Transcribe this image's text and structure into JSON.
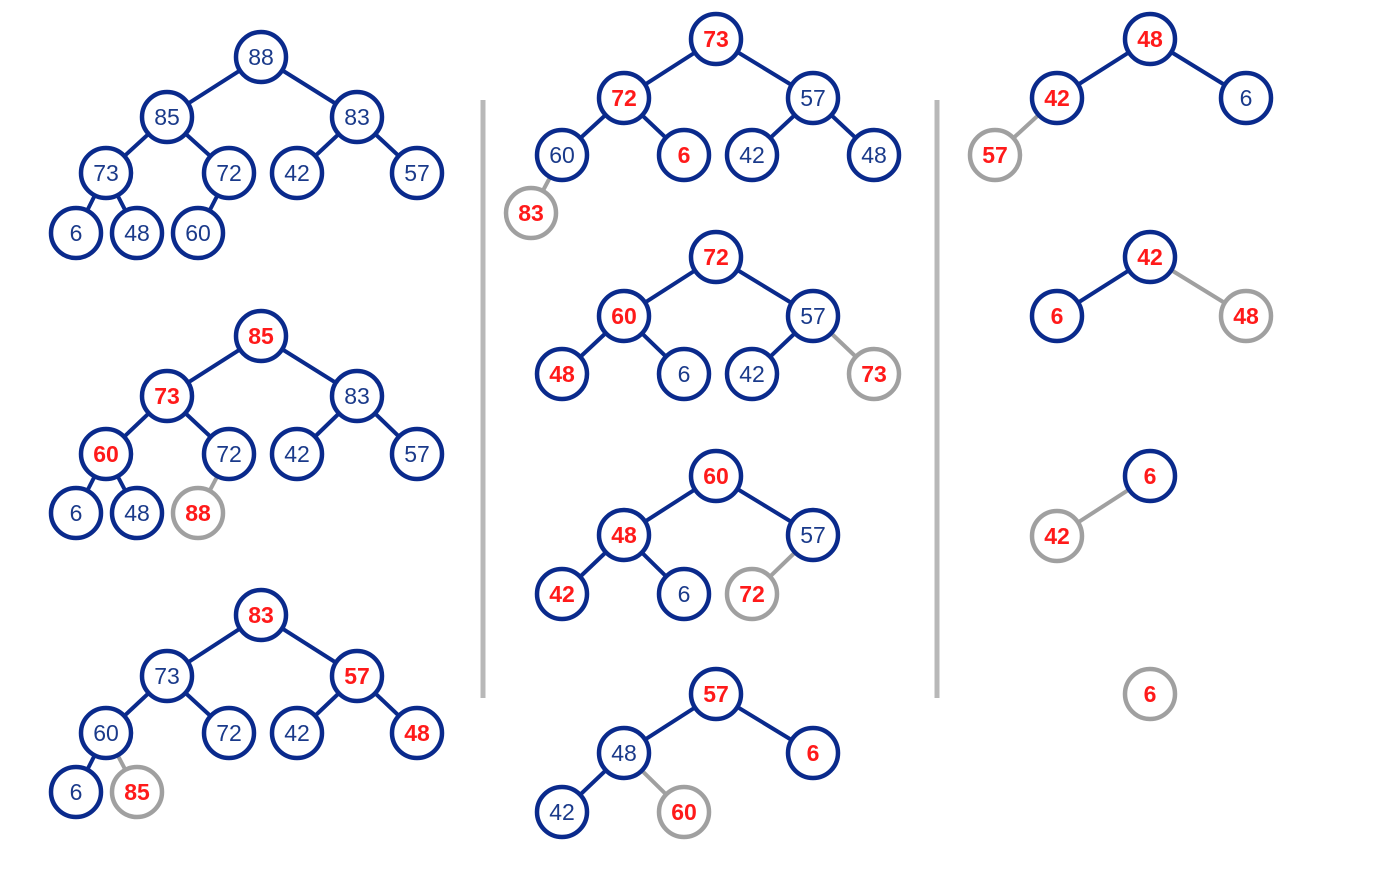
{
  "colors": {
    "node_stroke": "#0a2a8c",
    "extracted_stroke": "#a0a0a0",
    "text_blue": "#1a3a8a",
    "text_red": "#ff1a1a",
    "divider": "#b8b8b8"
  },
  "trees": [
    {
      "id": "heap-1",
      "nodes": [
        {
          "label": "88",
          "highlight": false,
          "extracted": false
        },
        {
          "label": "85",
          "highlight": false,
          "extracted": false
        },
        {
          "label": "83",
          "highlight": false,
          "extracted": false
        },
        {
          "label": "73",
          "highlight": false,
          "extracted": false
        },
        {
          "label": "72",
          "highlight": false,
          "extracted": false
        },
        {
          "label": "42",
          "highlight": false,
          "extracted": false
        },
        {
          "label": "57",
          "highlight": false,
          "extracted": false
        },
        {
          "label": "6",
          "highlight": false,
          "extracted": false
        },
        {
          "label": "48",
          "highlight": false,
          "extracted": false
        },
        {
          "label": "60",
          "highlight": false,
          "extracted": false
        }
      ]
    },
    {
      "id": "heap-2",
      "nodes": [
        {
          "label": "85",
          "highlight": true,
          "extracted": false
        },
        {
          "label": "73",
          "highlight": true,
          "extracted": false
        },
        {
          "label": "83",
          "highlight": false,
          "extracted": false
        },
        {
          "label": "60",
          "highlight": true,
          "extracted": false
        },
        {
          "label": "72",
          "highlight": false,
          "extracted": false
        },
        {
          "label": "42",
          "highlight": false,
          "extracted": false
        },
        {
          "label": "57",
          "highlight": false,
          "extracted": false
        },
        {
          "label": "6",
          "highlight": false,
          "extracted": false
        },
        {
          "label": "48",
          "highlight": false,
          "extracted": false
        },
        {
          "label": "88",
          "highlight": true,
          "extracted": true
        }
      ]
    },
    {
      "id": "heap-3",
      "nodes": [
        {
          "label": "83",
          "highlight": true,
          "extracted": false
        },
        {
          "label": "73",
          "highlight": false,
          "extracted": false
        },
        {
          "label": "57",
          "highlight": true,
          "extracted": false
        },
        {
          "label": "60",
          "highlight": false,
          "extracted": false
        },
        {
          "label": "72",
          "highlight": false,
          "extracted": false
        },
        {
          "label": "42",
          "highlight": false,
          "extracted": false
        },
        {
          "label": "48",
          "highlight": true,
          "extracted": false
        },
        {
          "label": "6",
          "highlight": false,
          "extracted": false
        },
        {
          "label": "85",
          "highlight": true,
          "extracted": true
        }
      ]
    },
    {
      "id": "heap-4",
      "nodes": [
        {
          "label": "73",
          "highlight": true,
          "extracted": false
        },
        {
          "label": "72",
          "highlight": true,
          "extracted": false
        },
        {
          "label": "57",
          "highlight": false,
          "extracted": false
        },
        {
          "label": "60",
          "highlight": false,
          "extracted": false
        },
        {
          "label": "6",
          "highlight": true,
          "extracted": false
        },
        {
          "label": "42",
          "highlight": false,
          "extracted": false
        },
        {
          "label": "48",
          "highlight": false,
          "extracted": false
        },
        {
          "label": "83",
          "highlight": true,
          "extracted": true
        }
      ]
    },
    {
      "id": "heap-5",
      "nodes": [
        {
          "label": "72",
          "highlight": true,
          "extracted": false
        },
        {
          "label": "60",
          "highlight": true,
          "extracted": false
        },
        {
          "label": "57",
          "highlight": false,
          "extracted": false
        },
        {
          "label": "48",
          "highlight": true,
          "extracted": false
        },
        {
          "label": "6",
          "highlight": false,
          "extracted": false
        },
        {
          "label": "42",
          "highlight": false,
          "extracted": false
        },
        {
          "label": "73",
          "highlight": true,
          "extracted": true
        }
      ]
    },
    {
      "id": "heap-6",
      "nodes": [
        {
          "label": "60",
          "highlight": true,
          "extracted": false
        },
        {
          "label": "48",
          "highlight": true,
          "extracted": false
        },
        {
          "label": "57",
          "highlight": false,
          "extracted": false
        },
        {
          "label": "42",
          "highlight": true,
          "extracted": false
        },
        {
          "label": "6",
          "highlight": false,
          "extracted": false
        },
        {
          "label": "72",
          "highlight": true,
          "extracted": true
        }
      ]
    },
    {
      "id": "heap-7",
      "nodes": [
        {
          "label": "57",
          "highlight": true,
          "extracted": false
        },
        {
          "label": "48",
          "highlight": false,
          "extracted": false
        },
        {
          "label": "6",
          "highlight": true,
          "extracted": false
        },
        {
          "label": "42",
          "highlight": false,
          "extracted": false
        },
        {
          "label": "60",
          "highlight": true,
          "extracted": true
        }
      ]
    },
    {
      "id": "heap-8",
      "nodes": [
        {
          "label": "48",
          "highlight": true,
          "extracted": false
        },
        {
          "label": "42",
          "highlight": true,
          "extracted": false
        },
        {
          "label": "6",
          "highlight": false,
          "extracted": false
        },
        {
          "label": "57",
          "highlight": true,
          "extracted": true
        }
      ]
    },
    {
      "id": "heap-9",
      "nodes": [
        {
          "label": "42",
          "highlight": true,
          "extracted": false
        },
        {
          "label": "6",
          "highlight": true,
          "extracted": false
        },
        {
          "label": "48",
          "highlight": true,
          "extracted": true
        }
      ]
    },
    {
      "id": "heap-10",
      "nodes": [
        {
          "label": "6",
          "highlight": true,
          "extracted": false
        },
        {
          "label": "42",
          "highlight": true,
          "extracted": true
        }
      ]
    },
    {
      "id": "heap-11",
      "nodes": [
        {
          "label": "6",
          "highlight": true,
          "extracted": true
        }
      ]
    }
  ]
}
